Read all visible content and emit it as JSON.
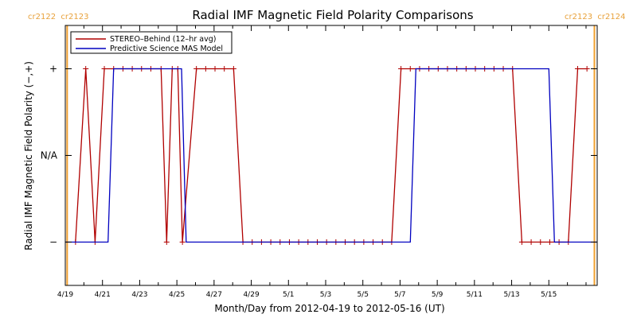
{
  "carrington_labels": {
    "left": "cr2122  cr2123",
    "right": "cr2123  cr2124"
  },
  "colors": {
    "stereo": "#b00000",
    "model": "#0000c0",
    "boundary": "#f0a030",
    "axis": "#000000",
    "cr_text": "#e8a13a"
  },
  "chart_data": {
    "type": "line",
    "title": "Radial IMF Magnetic Field Polarity Comparisons",
    "xlabel": "Month/Day from 2012-04-19 to 2012-05-16 (UT)",
    "ylabel": "Radial IMF Magnetic Field Polarity (−,+)",
    "x_unit": "days from 2012-04-19 00:00 UT",
    "xlim": [
      0,
      28.6
    ],
    "ylim": [
      -1.5,
      1.5
    ],
    "x_ticks": [
      {
        "label": "4/19",
        "x": 0
      },
      {
        "label": "4/21",
        "x": 2
      },
      {
        "label": "4/23",
        "x": 4
      },
      {
        "label": "4/25",
        "x": 6
      },
      {
        "label": "4/27",
        "x": 8
      },
      {
        "label": "4/29",
        "x": 10
      },
      {
        "label": "5/1",
        "x": 12
      },
      {
        "label": "5/3",
        "x": 14
      },
      {
        "label": "5/5",
        "x": 16
      },
      {
        "label": "5/7",
        "x": 18
      },
      {
        "label": "5/9",
        "x": 20
      },
      {
        "label": "5/11",
        "x": 22
      },
      {
        "label": "5/13",
        "x": 24
      },
      {
        "label": "5/15",
        "x": 26
      }
    ],
    "y_ticks": [
      {
        "label": "+",
        "y": 1
      },
      {
        "label": "N/A",
        "y": 0
      },
      {
        "label": "−",
        "y": -1
      }
    ],
    "boundaries": [
      0.1,
      28.45
    ],
    "legend": {
      "position": "top-left"
    },
    "series": [
      {
        "name": "STEREO–Behind (12–hr avg)",
        "color": "#b00000",
        "markers": true,
        "x": [
          0.55,
          1.1,
          1.6,
          2.1,
          2.6,
          3.1,
          3.6,
          4.1,
          4.6,
          5.15,
          5.45,
          5.75,
          6.05,
          6.3,
          7.05,
          7.55,
          8.05,
          8.55,
          9.05,
          9.55,
          10.05,
          10.55,
          11.05,
          11.55,
          12.05,
          12.55,
          13.05,
          13.55,
          14.05,
          14.55,
          15.05,
          15.55,
          16.05,
          16.55,
          17.05,
          17.55,
          18.05,
          18.55,
          19.05,
          19.55,
          20.05,
          20.55,
          21.05,
          21.55,
          22.05,
          22.55,
          23.05,
          23.55,
          24.05,
          24.55,
          25.05,
          25.55,
          26.05,
          26.55,
          27.05,
          27.55,
          28.05
        ],
        "y": [
          -1,
          1,
          -1,
          1,
          1,
          1,
          1,
          1,
          1,
          1,
          -1,
          1,
          1,
          -1,
          1,
          1,
          1,
          1,
          1,
          -1,
          -1,
          -1,
          -1,
          -1,
          -1,
          -1,
          -1,
          -1,
          -1,
          -1,
          -1,
          -1,
          -1,
          -1,
          -1,
          -1,
          1,
          1,
          1,
          1,
          1,
          1,
          1,
          1,
          1,
          1,
          1,
          1,
          1,
          -1,
          -1,
          -1,
          -1,
          -1,
          -1,
          1,
          1
        ]
      },
      {
        "name": "Predictive Science MAS Model",
        "color": "#0000c0",
        "markers": false,
        "x": [
          0,
          2.3,
          2.6,
          6.25,
          6.5,
          18.55,
          18.85,
          26.0,
          26.3,
          28.6
        ],
        "y": [
          -1,
          -1,
          1,
          1,
          -1,
          -1,
          1,
          1,
          -1,
          -1
        ]
      }
    ]
  }
}
